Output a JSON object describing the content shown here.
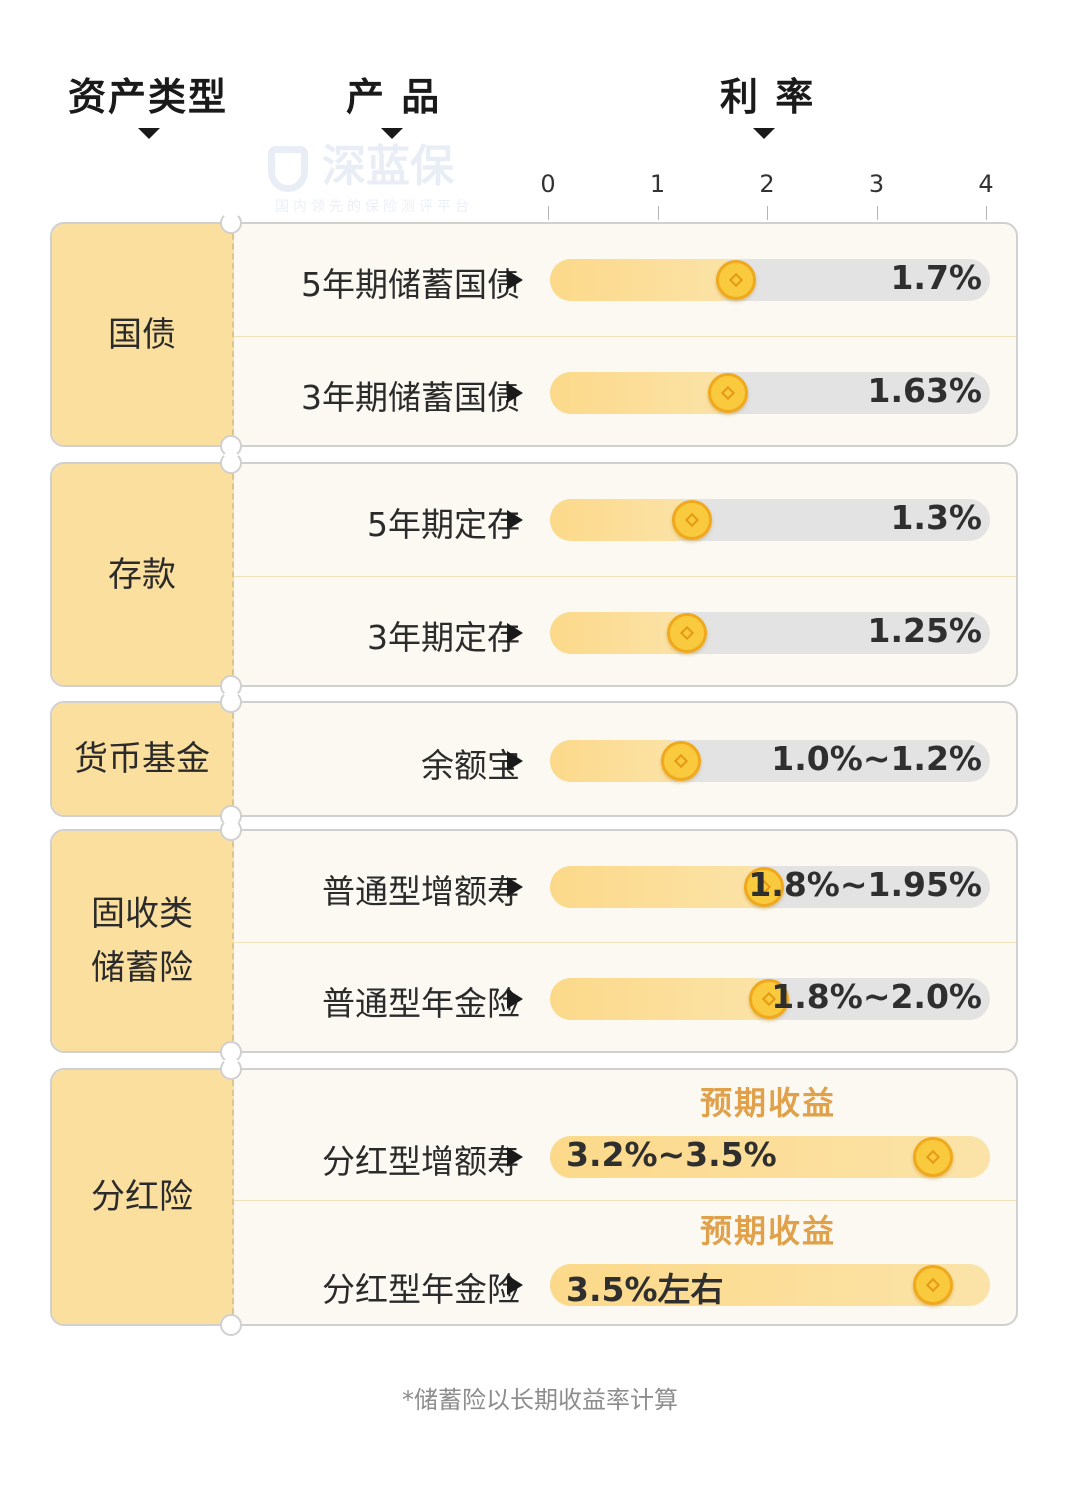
{
  "headers": {
    "asset_type": "资产类型",
    "product": "产 品",
    "rate": "利 率"
  },
  "watermark": {
    "brand": "深蓝保",
    "tagline": "国内领先的保险测评平台"
  },
  "chart_data": {
    "type": "bar",
    "title": "",
    "xlabel": "",
    "ylabel": "",
    "xlim": [
      0,
      4
    ],
    "ticks": [
      "0",
      "1",
      "2",
      "3",
      "4"
    ],
    "groups": [
      {
        "name": "国债",
        "items": [
          {
            "product": "5年期储蓄国债",
            "value": 1.7,
            "label": "1.7%"
          },
          {
            "product": "3年期储蓄国债",
            "value": 1.63,
            "label": "1.63%"
          }
        ]
      },
      {
        "name": "存款",
        "items": [
          {
            "product": "5年期定存",
            "value": 1.3,
            "label": "1.3%"
          },
          {
            "product": "3年期定存",
            "value": 1.25,
            "label": "1.25%"
          }
        ]
      },
      {
        "name": "货币基金",
        "items": [
          {
            "product": "余额宝",
            "value": 1.2,
            "range": [
              1.0,
              1.2
            ],
            "label": "1.0%~1.2%"
          }
        ]
      },
      {
        "name": "固收类\n储蓄险",
        "items": [
          {
            "product": "普通型增额寿",
            "value": 1.95,
            "range": [
              1.8,
              1.95
            ],
            "label": "1.8%~1.95%"
          },
          {
            "product": "普通型年金险",
            "value": 2.0,
            "range": [
              1.8,
              2.0
            ],
            "label": "1.8%~2.0%"
          }
        ]
      },
      {
        "name": "分红险",
        "items": [
          {
            "product": "分红型增额寿",
            "value": 3.5,
            "range": [
              3.2,
              3.5
            ],
            "label": "3.2%~3.5%",
            "note": "预期收益"
          },
          {
            "product": "分红型年金险",
            "value": 3.5,
            "label": "3.5%左右",
            "note": "预期收益"
          }
        ]
      }
    ]
  },
  "footnote": "*储蓄险以长期收益率计算",
  "colors": {
    "category_bg": "#fbdf9f",
    "bar_fill": "#fcd98a",
    "track": "#e3e3e3",
    "coin": "#f9c93e",
    "expect_text": "#e0a14a"
  }
}
